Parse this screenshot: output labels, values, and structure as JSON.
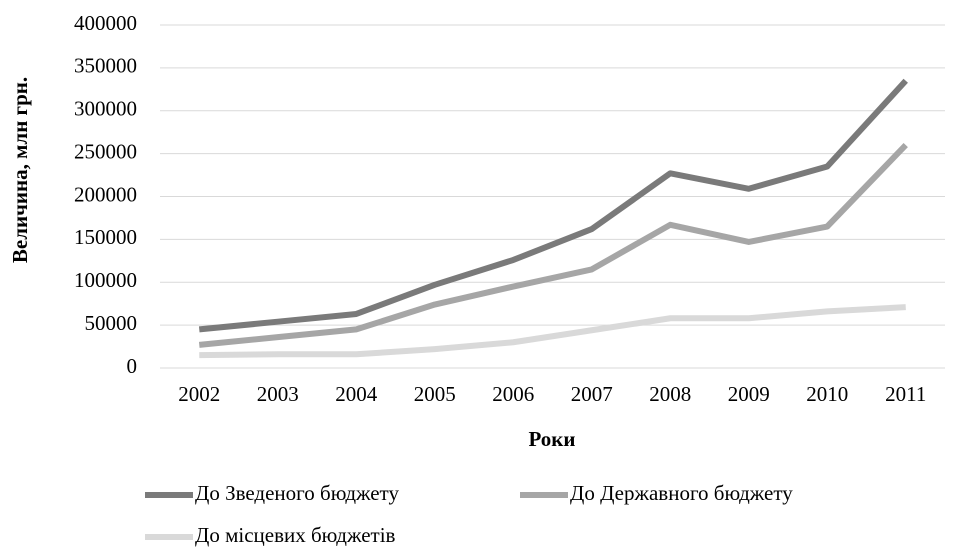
{
  "chart_data": {
    "type": "line",
    "x_label": "Роки",
    "y_label": "Величина, млн  грн.",
    "categories": [
      "2002",
      "2003",
      "2004",
      "2005",
      "2006",
      "2007",
      "2008",
      "2009",
      "2010",
      "2011"
    ],
    "series": [
      {
        "name": "До Зведеного бюджету",
        "color": "#7a7a7a",
        "values": [
          45000,
          54000,
          63000,
          97000,
          126000,
          162000,
          227000,
          209000,
          235000,
          335000
        ]
      },
      {
        "name": "До Державного бюджету",
        "color": "#a6a6a6",
        "values": [
          27000,
          36000,
          45000,
          74000,
          95000,
          115000,
          167000,
          147000,
          165000,
          260000
        ]
      },
      {
        "name": "До місцевих бюджетів",
        "color": "#d9d9d9",
        "values": [
          15000,
          16000,
          16000,
          22000,
          30000,
          44000,
          58000,
          58000,
          66000,
          71000
        ]
      }
    ],
    "ylim": [
      0,
      400000
    ],
    "yticks": [
      0,
      50000,
      100000,
      150000,
      200000,
      250000,
      300000,
      350000,
      400000
    ],
    "grid": true
  }
}
